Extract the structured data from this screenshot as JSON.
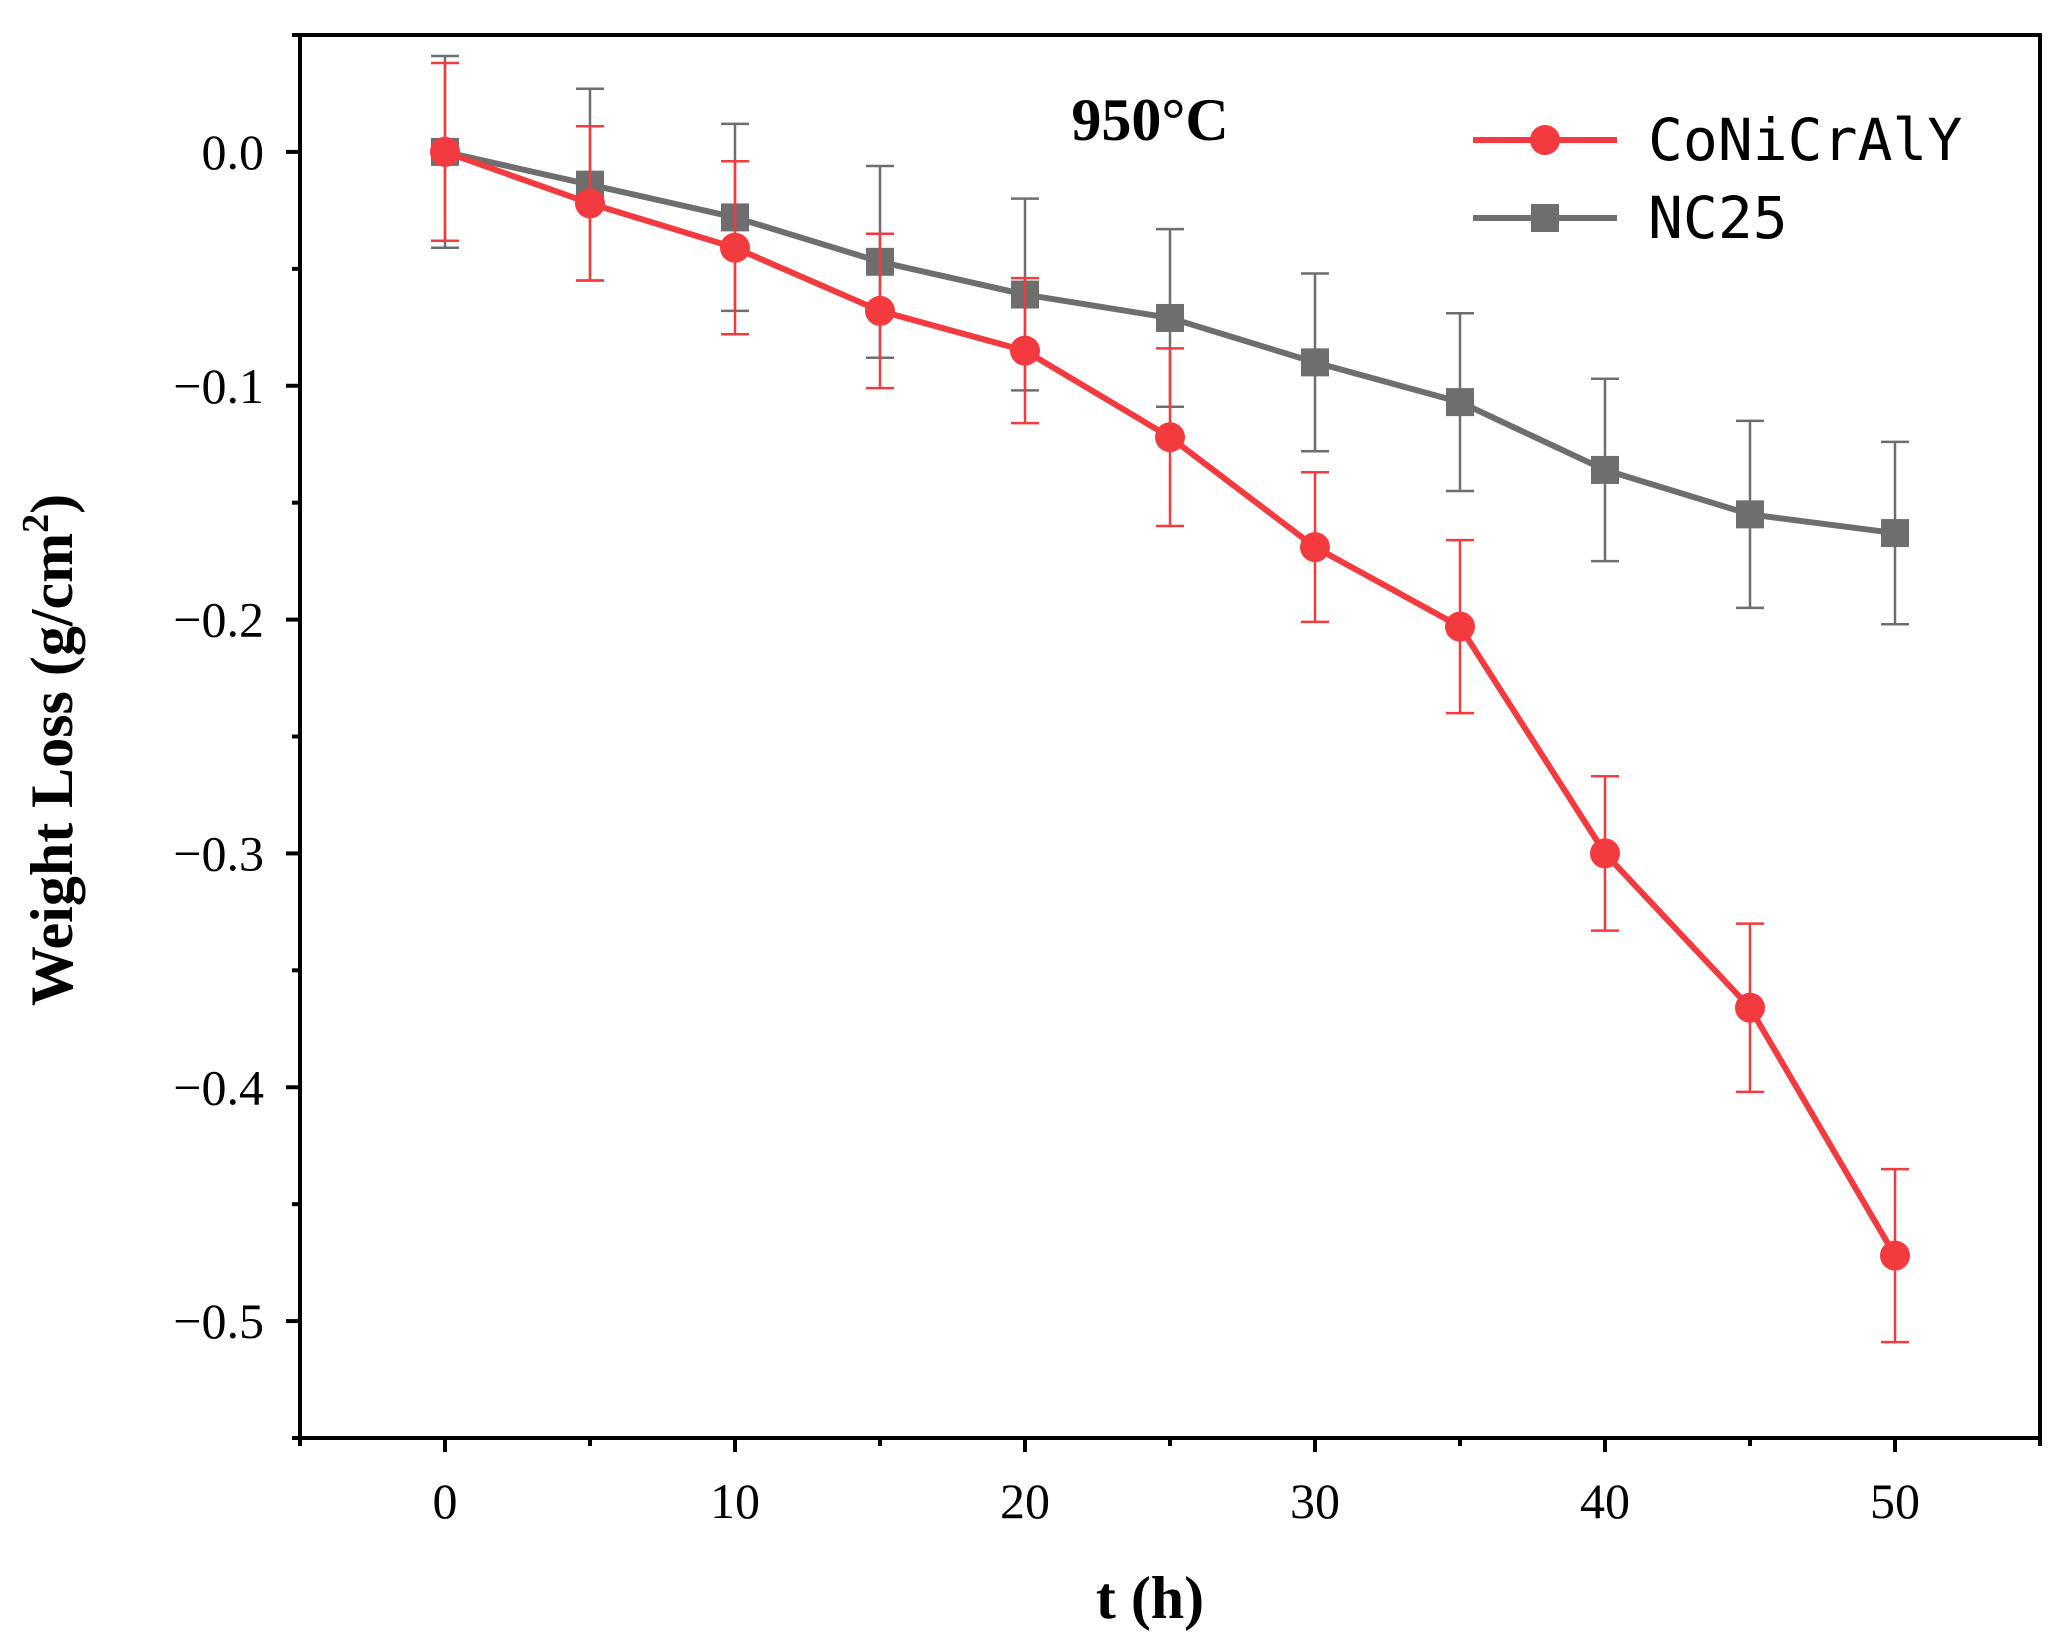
{
  "chart_data": {
    "type": "line",
    "title": "",
    "annotation": "950°C",
    "xlabel": "t (h)",
    "ylabel_main": "Weight Loss (g/cm",
    "ylabel_sup": "2",
    "ylabel_close": ")",
    "xlim": [
      -5,
      55
    ],
    "ylim": [
      -0.55,
      0.05
    ],
    "xticks": [
      0,
      10,
      20,
      30,
      40,
      50
    ],
    "xtick_labels": [
      "0",
      "10",
      "20",
      "30",
      "40",
      "50"
    ],
    "xminor_ticks": [
      -5,
      5,
      15,
      25,
      35,
      45,
      55
    ],
    "yticks": [
      0.0,
      -0.1,
      -0.2,
      -0.3,
      -0.4,
      -0.5
    ],
    "ytick_labels": [
      "0.0",
      "−0.1",
      "−0.2",
      "−0.3",
      "−0.4",
      "−0.5"
    ],
    "yminor_ticks": [
      0.05,
      -0.05,
      -0.15,
      -0.25,
      -0.35,
      -0.45,
      -0.55
    ],
    "legend_position": "top-right",
    "grid": false,
    "x": [
      0,
      5,
      10,
      15,
      20,
      25,
      30,
      35,
      40,
      45,
      50
    ],
    "series": [
      {
        "name": "CoNiCrAlY",
        "color": "#f23a3f",
        "marker": "circle",
        "values": [
          0.0,
          -0.022,
          -0.041,
          -0.068,
          -0.085,
          -0.122,
          -0.169,
          -0.203,
          -0.3,
          -0.366,
          -0.472
        ],
        "errors": [
          0.038,
          0.033,
          0.037,
          0.033,
          0.031,
          0.038,
          0.032,
          0.037,
          0.033,
          0.036,
          0.037
        ]
      },
      {
        "name": "NC25",
        "color": "#6e6e6e",
        "marker": "square",
        "values": [
          0.0,
          -0.014,
          -0.028,
          -0.047,
          -0.061,
          -0.071,
          -0.09,
          -0.107,
          -0.136,
          -0.155,
          -0.163
        ],
        "errors": [
          0.041,
          0.041,
          0.04,
          0.041,
          0.041,
          0.038,
          0.038,
          0.038,
          0.039,
          0.04,
          0.039
        ]
      }
    ]
  }
}
